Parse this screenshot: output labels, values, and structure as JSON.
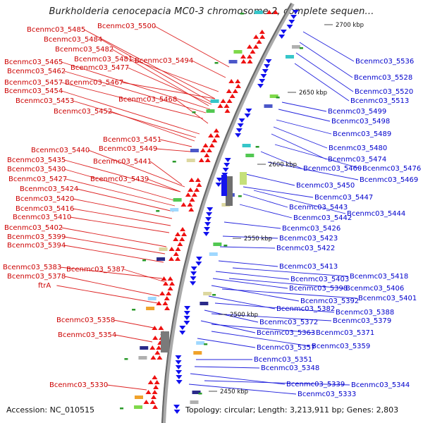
{
  "title": "Burkholderia cenocepacia MC0-3 chromosome 2, complete sequen...",
  "footer": {
    "accession": "Accession: NC_010515",
    "summary": "Topology: circular; Length: 3,213,911 bp; Genes: 2,803"
  },
  "ruler": [
    "2700 kbp",
    "2650 kbp",
    "2600 kbp",
    "2550 kbp",
    "2500 kbp",
    "2450 kbp"
  ],
  "colors": {
    "left_genes": "#cc0000",
    "right_genes": "#0000cc",
    "backbone": "#888888"
  },
  "left_labels": [
    "Bcenmc03_5500",
    "Bcenmc03_5485",
    "Bcenmc03_5484",
    "Bcenmc03_5482",
    "Bcenmc03_5481",
    "Bcenmc03_5494",
    "Bcenmc03_5465",
    "Bcenmc03_5477",
    "Bcenmc03_5462",
    "Bcenmc03_5457",
    "Bcenmc03_5467",
    "Bcenmc03_5454",
    "Bcenmc03_5468",
    "Bcenmc03_5453",
    "Bcenmc03_5452",
    "Bcenmc03_5451",
    "Bcenmc03_5440",
    "Bcenmc03_5449",
    "Bcenmc03_5435",
    "Bcenmc03_5441",
    "Bcenmc03_5430",
    "Bcenmc03_5439",
    "Bcenmc03_5427",
    "Bcenmc03_5424",
    "Bcenmc03_5420",
    "Bcenmc03_5416",
    "Bcenmc03_5410",
    "Bcenmc03_5402",
    "Bcenmc03_5399",
    "Bcenmc03_5394",
    "Bcenmc03_5383",
    "Bcenmc03_5387",
    "Bcenmc03_5378",
    "ftrA",
    "Bcenmc03_5358",
    "Bcenmc03_5354",
    "Bcenmc03_5330"
  ],
  "right_labels": [
    "Bcenmc03_5536",
    "Bcenmc03_5528",
    "Bcenmc03_5520",
    "Bcenmc03_5513",
    "Bcenmc03_5499",
    "Bcenmc03_5498",
    "Bcenmc03_5489",
    "Bcenmc03_5480",
    "Bcenmc03_5474",
    "Bcenmc03_5460",
    "Bcenmc03_5476",
    "Bcenmc03_5469",
    "Bcenmc03_5450",
    "Bcenmc03_5447",
    "Bcenmc03_5443",
    "Bcenmc03_5442",
    "Bcenmc03_5444",
    "Bcenmc03_5426",
    "Bcenmc03_5423",
    "Bcenmc03_5422",
    "Bcenmc03_5413",
    "Bcenmc03_5418",
    "Bcenmc03_5403",
    "Bcenmc03_5398",
    "Bcenmc03_5406",
    "Bcenmc03_5392",
    "Bcenmc03_5401",
    "Bcenmc03_5382",
    "Bcenmc03_5388",
    "Bcenmc03_5372",
    "Bcenmc03_5379",
    "Bcenmc03_5363",
    "Bcenmc03_5371",
    "Bcenmc03_5357",
    "Bcenmc03_5359",
    "Bcenmc03_5351",
    "Bcenmc03_5348",
    "Bcenmc03_5339",
    "Bcenmc03_5344",
    "Bcenmc03_5333"
  ]
}
